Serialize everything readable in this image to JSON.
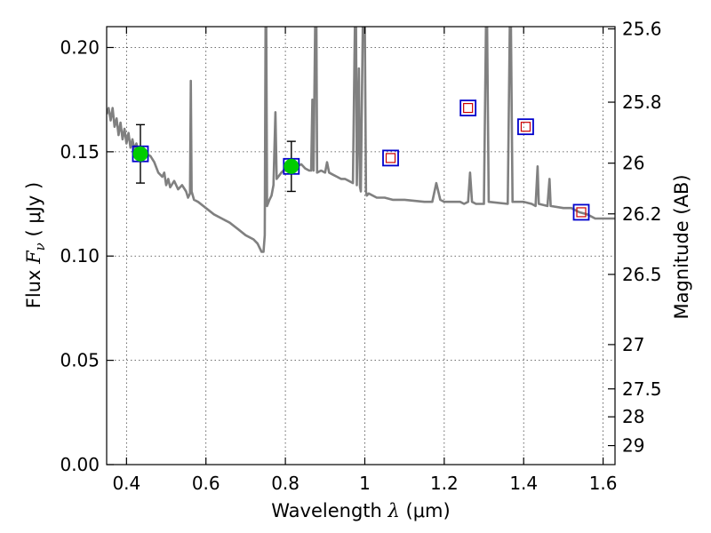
{
  "chart_data": {
    "type": "scatter",
    "title": "",
    "xlabel_prefix": "Wavelength ",
    "xlabel_symbol": "λ",
    "xlabel_unit": " (μm)",
    "ylabel_prefix": "Flux ",
    "ylabel_symbol": "F",
    "ylabel_subscript": "ν",
    "ylabel_unit": " ( μJy )",
    "y2label": "Magnitude (AB)",
    "xlim": [
      0.35,
      1.63
    ],
    "ylim": [
      0.0,
      0.21
    ],
    "grid": true,
    "grid_style": "dotted",
    "x_ticks": [
      {
        "value": 0.4,
        "label": "0.4"
      },
      {
        "value": 0.6,
        "label": "0.6"
      },
      {
        "value": 0.8,
        "label": "0.8"
      },
      {
        "value": 1.0,
        "label": "1"
      },
      {
        "value": 1.2,
        "label": "1.2"
      },
      {
        "value": 1.4,
        "label": "1.4"
      },
      {
        "value": 1.6,
        "label": "1.6"
      }
    ],
    "y_ticks": [
      {
        "value": 0.0,
        "label": "0.00"
      },
      {
        "value": 0.05,
        "label": "0.05"
      },
      {
        "value": 0.1,
        "label": "0.10"
      },
      {
        "value": 0.15,
        "label": "0.15"
      },
      {
        "value": 0.2,
        "label": "0.20"
      }
    ],
    "y2_ticks": [
      {
        "value": 25.6,
        "label": "25.6"
      },
      {
        "value": 25.8,
        "label": "25.8"
      },
      {
        "value": 26.0,
        "label": "26"
      },
      {
        "value": 26.2,
        "label": "26.2"
      },
      {
        "value": 26.5,
        "label": "26.5"
      },
      {
        "value": 27.0,
        "label": "27"
      },
      {
        "value": 27.5,
        "label": "27.5"
      },
      {
        "value": 28.0,
        "label": "28"
      },
      {
        "value": 29.0,
        "label": "29"
      }
    ],
    "model_spectrum": {
      "color": "#808080",
      "points": [
        [
          0.35,
          0.168
        ],
        [
          0.355,
          0.171
        ],
        [
          0.36,
          0.165
        ],
        [
          0.365,
          0.171
        ],
        [
          0.37,
          0.162
        ],
        [
          0.375,
          0.166
        ],
        [
          0.38,
          0.158
        ],
        [
          0.385,
          0.164
        ],
        [
          0.39,
          0.156
        ],
        [
          0.395,
          0.161
        ],
        [
          0.4,
          0.154
        ],
        [
          0.405,
          0.159
        ],
        [
          0.41,
          0.152
        ],
        [
          0.415,
          0.156
        ],
        [
          0.42,
          0.151
        ],
        [
          0.425,
          0.154
        ],
        [
          0.43,
          0.15
        ],
        [
          0.44,
          0.15
        ],
        [
          0.45,
          0.149
        ],
        [
          0.46,
          0.148
        ],
        [
          0.47,
          0.145
        ],
        [
          0.48,
          0.14
        ],
        [
          0.49,
          0.138
        ],
        [
          0.495,
          0.14
        ],
        [
          0.5,
          0.134
        ],
        [
          0.505,
          0.137
        ],
        [
          0.51,
          0.133
        ],
        [
          0.52,
          0.136
        ],
        [
          0.53,
          0.132
        ],
        [
          0.54,
          0.134
        ],
        [
          0.55,
          0.131
        ],
        [
          0.555,
          0.128
        ],
        [
          0.56,
          0.13
        ],
        [
          0.562,
          0.184
        ],
        [
          0.564,
          0.131
        ],
        [
          0.57,
          0.127
        ],
        [
          0.58,
          0.126
        ],
        [
          0.6,
          0.123
        ],
        [
          0.62,
          0.12
        ],
        [
          0.64,
          0.118
        ],
        [
          0.66,
          0.116
        ],
        [
          0.68,
          0.113
        ],
        [
          0.7,
          0.11
        ],
        [
          0.72,
          0.108
        ],
        [
          0.73,
          0.106
        ],
        [
          0.74,
          0.102
        ],
        [
          0.745,
          0.102
        ],
        [
          0.748,
          0.11
        ],
        [
          0.75,
          0.21
        ],
        [
          0.752,
          0.21
        ],
        [
          0.754,
          0.124
        ],
        [
          0.76,
          0.127
        ],
        [
          0.765,
          0.129
        ],
        [
          0.77,
          0.134
        ],
        [
          0.775,
          0.169
        ],
        [
          0.778,
          0.137
        ],
        [
          0.79,
          0.14
        ],
        [
          0.795,
          0.141
        ],
        [
          0.8,
          0.142
        ],
        [
          0.81,
          0.144
        ],
        [
          0.82,
          0.145
        ],
        [
          0.83,
          0.143
        ],
        [
          0.84,
          0.144
        ],
        [
          0.85,
          0.142
        ],
        [
          0.86,
          0.141
        ],
        [
          0.865,
          0.141
        ],
        [
          0.868,
          0.175
        ],
        [
          0.871,
          0.141
        ],
        [
          0.875,
          0.21
        ],
        [
          0.878,
          0.21
        ],
        [
          0.88,
          0.14
        ],
        [
          0.89,
          0.141
        ],
        [
          0.9,
          0.14
        ],
        [
          0.905,
          0.145
        ],
        [
          0.91,
          0.14
        ],
        [
          0.92,
          0.139
        ],
        [
          0.93,
          0.138
        ],
        [
          0.94,
          0.137
        ],
        [
          0.95,
          0.137
        ],
        [
          0.96,
          0.136
        ],
        [
          0.97,
          0.135
        ],
        [
          0.975,
          0.21
        ],
        [
          0.978,
          0.21
        ],
        [
          0.98,
          0.134
        ],
        [
          0.985,
          0.19
        ],
        [
          0.988,
          0.133
        ],
        [
          0.99,
          0.131
        ],
        [
          0.995,
          0.21
        ],
        [
          1.0,
          0.21
        ],
        [
          1.003,
          0.131
        ],
        [
          1.005,
          0.129
        ],
        [
          1.01,
          0.13
        ],
        [
          1.03,
          0.128
        ],
        [
          1.05,
          0.128
        ],
        [
          1.07,
          0.127
        ],
        [
          1.1,
          0.127
        ],
        [
          1.15,
          0.126
        ],
        [
          1.17,
          0.126
        ],
        [
          1.18,
          0.135
        ],
        [
          1.19,
          0.127
        ],
        [
          1.2,
          0.126
        ],
        [
          1.22,
          0.126
        ],
        [
          1.24,
          0.126
        ],
        [
          1.25,
          0.125
        ],
        [
          1.26,
          0.126
        ],
        [
          1.265,
          0.14
        ],
        [
          1.27,
          0.126
        ],
        [
          1.28,
          0.125
        ],
        [
          1.3,
          0.125
        ],
        [
          1.305,
          0.21
        ],
        [
          1.308,
          0.21
        ],
        [
          1.312,
          0.126
        ],
        [
          1.36,
          0.125
        ],
        [
          1.365,
          0.21
        ],
        [
          1.368,
          0.21
        ],
        [
          1.372,
          0.126
        ],
        [
          1.4,
          0.126
        ],
        [
          1.42,
          0.125
        ],
        [
          1.43,
          0.124
        ],
        [
          1.435,
          0.143
        ],
        [
          1.438,
          0.125
        ],
        [
          1.46,
          0.124
        ],
        [
          1.465,
          0.137
        ],
        [
          1.468,
          0.124
        ],
        [
          1.5,
          0.123
        ],
        [
          1.52,
          0.123
        ],
        [
          1.54,
          0.121
        ],
        [
          1.56,
          0.12
        ],
        [
          1.58,
          0.118
        ],
        [
          1.6,
          0.118
        ],
        [
          1.63,
          0.118
        ]
      ]
    },
    "observed_photometry": {
      "color": "#00cc00",
      "points": [
        {
          "x": 0.435,
          "y": 0.149,
          "yerr": 0.014
        },
        {
          "x": 0.815,
          "y": 0.143,
          "yerr": 0.012
        }
      ]
    },
    "model_photometry": {
      "outer_color": "#0000cc",
      "inner_color": "#cc0000",
      "points": [
        {
          "x": 0.435,
          "y": 0.149
        },
        {
          "x": 0.815,
          "y": 0.143
        },
        {
          "x": 1.065,
          "y": 0.147
        },
        {
          "x": 1.26,
          "y": 0.171
        },
        {
          "x": 1.405,
          "y": 0.162
        },
        {
          "x": 1.545,
          "y": 0.121
        }
      ]
    }
  }
}
